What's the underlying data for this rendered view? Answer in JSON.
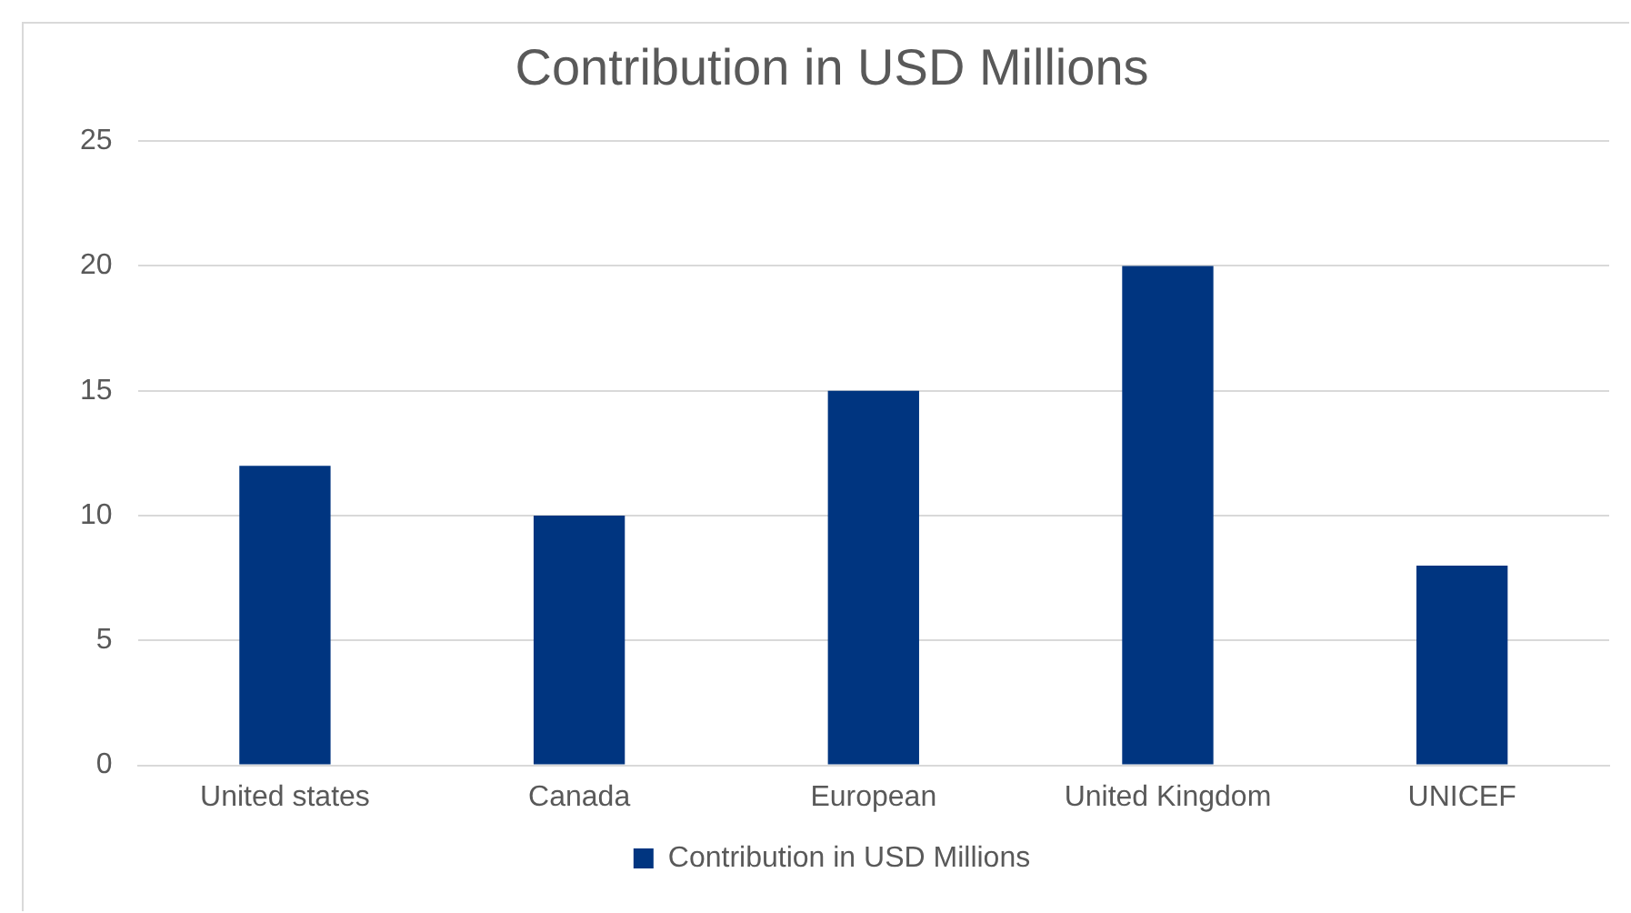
{
  "chart_data": {
    "type": "bar",
    "title": "Contribution in USD Millions",
    "categories": [
      "United states",
      "Canada",
      "European",
      "United Kingdom",
      "UNICEF"
    ],
    "series": [
      {
        "name": "Contribution in USD Millions",
        "color": "#003580",
        "values": [
          12,
          10,
          15,
          20,
          8
        ]
      }
    ],
    "ylim": [
      0,
      25
    ],
    "yticks": [
      0,
      5,
      10,
      15,
      20,
      25
    ],
    "grid": "y",
    "legend": "bottom"
  }
}
